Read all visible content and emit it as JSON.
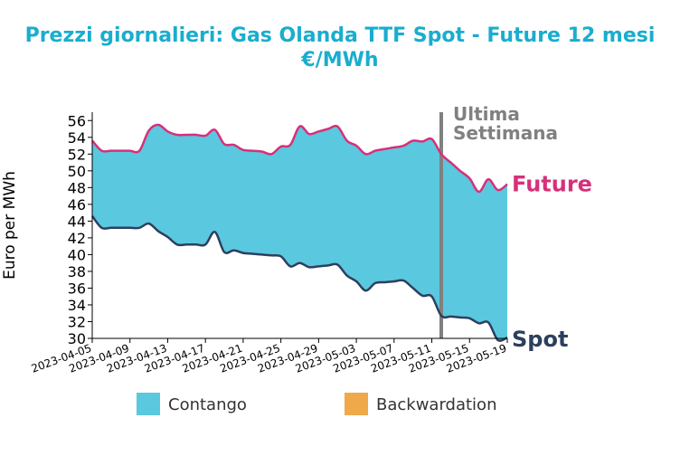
{
  "chart_data": {
    "type": "area",
    "title": "Prezzi giornalieri: Gas Olanda TTF Spot - Future 12 mesi",
    "subtitle": "€/MWh",
    "xlabel": "",
    "ylabel": "Euro per MWh",
    "ylim": [
      30,
      57
    ],
    "yticks": [
      30,
      32,
      34,
      36,
      38,
      40,
      42,
      44,
      46,
      48,
      50,
      52,
      54,
      56
    ],
    "xlim": [
      "2023-04-05",
      "2023-05-19"
    ],
    "xticks": [
      "2023-04-05",
      "2023-04-09",
      "2023-04-13",
      "2023-04-17",
      "2023-04-21",
      "2023-04-25",
      "2023-04-29",
      "2023-05-03",
      "2023-05-07",
      "2023-05-11",
      "2023-05-15",
      "2023-05-19"
    ],
    "grid": false,
    "series": [
      {
        "name": "Future",
        "color": "#d7307a",
        "points": [
          [
            "2023-04-05",
            53.6
          ],
          [
            "2023-04-06",
            52.4
          ],
          [
            "2023-04-07",
            52.4
          ],
          [
            "2023-04-08",
            52.4
          ],
          [
            "2023-04-09",
            52.4
          ],
          [
            "2023-04-10",
            52.4
          ],
          [
            "2023-04-11",
            54.8
          ],
          [
            "2023-04-12",
            55.5
          ],
          [
            "2023-04-13",
            54.7
          ],
          [
            "2023-04-14",
            54.3
          ],
          [
            "2023-04-15",
            54.3
          ],
          [
            "2023-04-16",
            54.3
          ],
          [
            "2023-04-17",
            54.2
          ],
          [
            "2023-04-18",
            54.9
          ],
          [
            "2023-04-19",
            53.2
          ],
          [
            "2023-04-20",
            53.1
          ],
          [
            "2023-04-21",
            52.5
          ],
          [
            "2023-04-22",
            52.4
          ],
          [
            "2023-04-23",
            52.3
          ],
          [
            "2023-04-24",
            52.0
          ],
          [
            "2023-04-25",
            52.9
          ],
          [
            "2023-04-26",
            53.1
          ],
          [
            "2023-04-27",
            55.3
          ],
          [
            "2023-04-28",
            54.4
          ],
          [
            "2023-04-29",
            54.7
          ],
          [
            "2023-04-30",
            55.0
          ],
          [
            "2023-05-01",
            55.3
          ],
          [
            "2023-05-02",
            53.6
          ],
          [
            "2023-05-03",
            53.0
          ],
          [
            "2023-05-04",
            52.0
          ],
          [
            "2023-05-05",
            52.4
          ],
          [
            "2023-05-06",
            52.6
          ],
          [
            "2023-05-07",
            52.8
          ],
          [
            "2023-05-08",
            53.0
          ],
          [
            "2023-05-09",
            53.6
          ],
          [
            "2023-05-10",
            53.5
          ],
          [
            "2023-05-11",
            53.8
          ],
          [
            "2023-05-12",
            52.0
          ],
          [
            "2023-05-13",
            51.0
          ],
          [
            "2023-05-14",
            50.0
          ],
          [
            "2023-05-15",
            49.1
          ],
          [
            "2023-05-16",
            47.5
          ],
          [
            "2023-05-17",
            49.0
          ],
          [
            "2023-05-18",
            47.7
          ],
          [
            "2023-05-19",
            48.4
          ]
        ]
      },
      {
        "name": "Spot",
        "color": "#2d3f5f",
        "points": [
          [
            "2023-04-05",
            44.6
          ],
          [
            "2023-04-06",
            43.2
          ],
          [
            "2023-04-07",
            43.2
          ],
          [
            "2023-04-08",
            43.2
          ],
          [
            "2023-04-09",
            43.2
          ],
          [
            "2023-04-10",
            43.2
          ],
          [
            "2023-04-11",
            43.7
          ],
          [
            "2023-04-12",
            42.8
          ],
          [
            "2023-04-13",
            42.1
          ],
          [
            "2023-04-14",
            41.2
          ],
          [
            "2023-04-15",
            41.2
          ],
          [
            "2023-04-16",
            41.2
          ],
          [
            "2023-04-17",
            41.2
          ],
          [
            "2023-04-18",
            42.7
          ],
          [
            "2023-04-19",
            40.3
          ],
          [
            "2023-04-20",
            40.5
          ],
          [
            "2023-04-21",
            40.2
          ],
          [
            "2023-04-22",
            40.1
          ],
          [
            "2023-04-23",
            40.0
          ],
          [
            "2023-04-24",
            39.9
          ],
          [
            "2023-04-25",
            39.8
          ],
          [
            "2023-04-26",
            38.6
          ],
          [
            "2023-04-27",
            39.0
          ],
          [
            "2023-04-28",
            38.5
          ],
          [
            "2023-04-29",
            38.6
          ],
          [
            "2023-04-30",
            38.7
          ],
          [
            "2023-05-01",
            38.8
          ],
          [
            "2023-05-02",
            37.5
          ],
          [
            "2023-05-03",
            36.8
          ],
          [
            "2023-05-04",
            35.7
          ],
          [
            "2023-05-05",
            36.6
          ],
          [
            "2023-05-06",
            36.7
          ],
          [
            "2023-05-07",
            36.8
          ],
          [
            "2023-05-08",
            36.9
          ],
          [
            "2023-05-09",
            36.0
          ],
          [
            "2023-05-10",
            35.1
          ],
          [
            "2023-05-11",
            35.0
          ],
          [
            "2023-05-12",
            32.7
          ],
          [
            "2023-05-13",
            32.6
          ],
          [
            "2023-05-14",
            32.5
          ],
          [
            "2023-05-15",
            32.4
          ],
          [
            "2023-05-16",
            31.8
          ],
          [
            "2023-05-17",
            31.9
          ],
          [
            "2023-05-18",
            29.8
          ],
          [
            "2023-05-19",
            30.1
          ]
        ]
      }
    ],
    "fills": {
      "contango_color": "#5ac8de",
      "backwardation_color": "#efa94a"
    },
    "legend": {
      "placement": "bottom",
      "items": [
        {
          "label": "Contango",
          "color": "#5ac8de"
        },
        {
          "label": "Backwardation",
          "color": "#efa94a"
        }
      ]
    },
    "annotations": {
      "vline_date": "2023-05-12",
      "vline_color": "#808080",
      "vline_label": [
        "Ultima",
        "Settimana"
      ],
      "future_label": "Future",
      "spot_label": "Spot"
    }
  }
}
